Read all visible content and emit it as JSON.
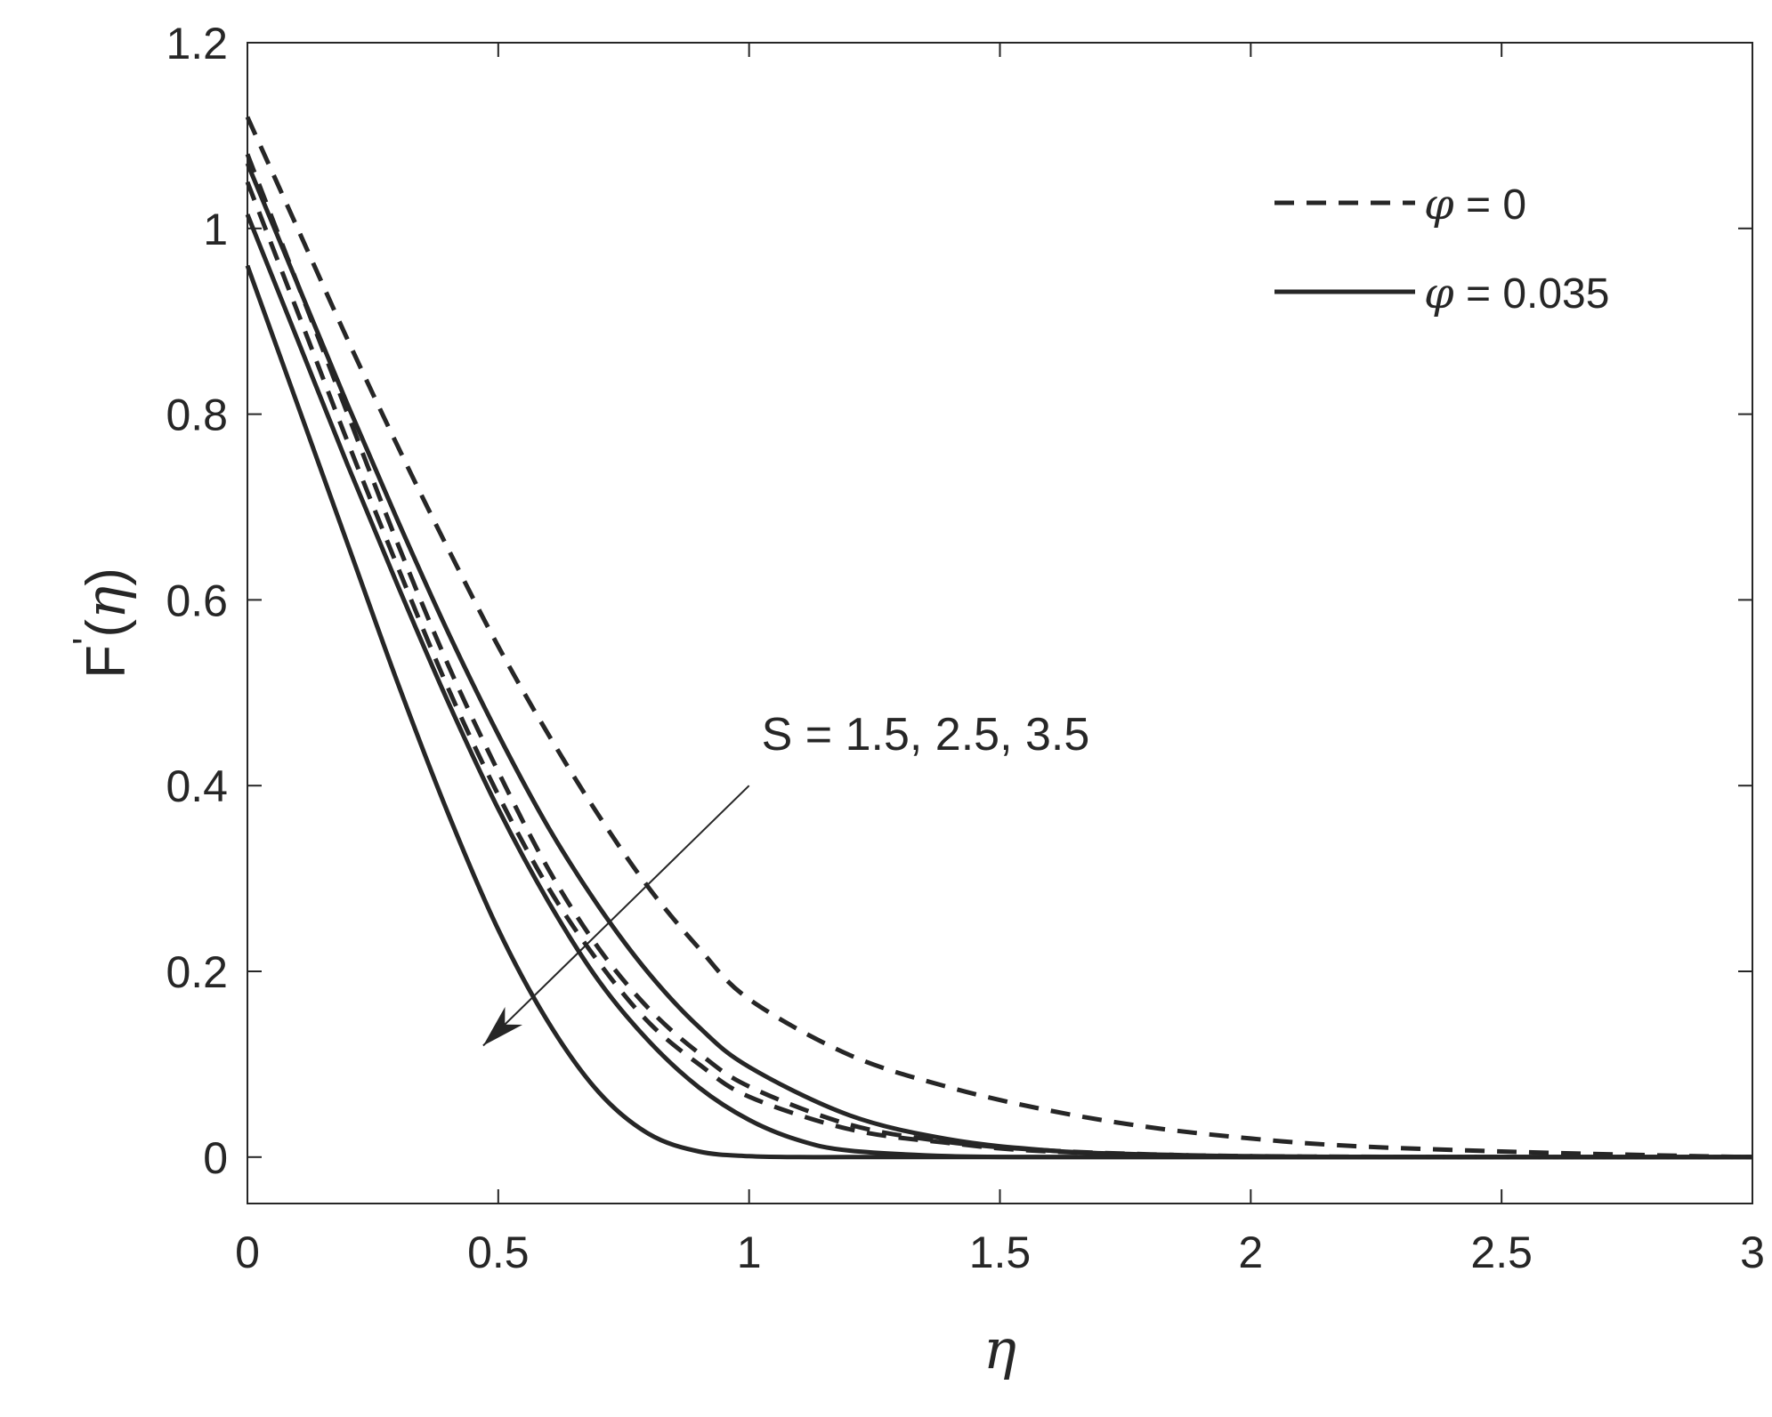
{
  "chart_data": {
    "type": "line",
    "xlabel": "η",
    "ylabel": {
      "main": "F",
      "prime": "'",
      "open": "(",
      "var": "η",
      "close": ")"
    },
    "xlim": [
      0,
      3
    ],
    "ylim": [
      -0.05,
      1.2
    ],
    "xticks": [
      0,
      0.5,
      1,
      1.5,
      2,
      2.5,
      3
    ],
    "xtick_labels": [
      "0",
      "0.5",
      "1",
      "1.5",
      "2",
      "2.5",
      "3"
    ],
    "yticks": [
      0,
      0.2,
      0.4,
      0.6,
      0.8,
      1,
      1.2
    ],
    "ytick_labels": [
      "0",
      "0.2",
      "0.4",
      "0.6",
      "0.8",
      "1",
      "1.2"
    ],
    "grid": false,
    "legend_position": "top-right",
    "legend": [
      {
        "symbol": "φ",
        "text": " = 0",
        "style": "dashed"
      },
      {
        "symbol": "φ",
        "text": " = 0.035",
        "style": "solid"
      }
    ],
    "annotation": {
      "text": "S = 1.5, 2.5, 3.5",
      "arrow_from": [
        1.0,
        0.4
      ],
      "arrow_to": [
        0.47,
        0.12
      ]
    },
    "series": [
      {
        "style": "dashed",
        "x": [
          0,
          0.1,
          0.2,
          0.3,
          0.4,
          0.5,
          0.6,
          0.7,
          0.8,
          0.9,
          1.0,
          1.2,
          1.4,
          1.6,
          1.8,
          2.0,
          2.2,
          2.5,
          2.8,
          3.0
        ],
        "y": [
          1.12,
          1.0,
          0.88,
          0.765,
          0.655,
          0.55,
          0.455,
          0.368,
          0.29,
          0.225,
          0.17,
          0.11,
          0.075,
          0.05,
          0.032,
          0.02,
          0.012,
          0.006,
          0.002,
          0.0
        ]
      },
      {
        "style": "dashed",
        "x": [
          0,
          0.1,
          0.2,
          0.3,
          0.4,
          0.5,
          0.6,
          0.7,
          0.8,
          0.9,
          1.0,
          1.2,
          1.4,
          1.6,
          1.8,
          2.0,
          2.5,
          3.0
        ],
        "y": [
          1.08,
          0.94,
          0.8,
          0.66,
          0.53,
          0.415,
          0.31,
          0.225,
          0.16,
          0.112,
          0.076,
          0.035,
          0.016,
          0.007,
          0.003,
          0.001,
          0.0,
          0.0
        ]
      },
      {
        "style": "dashed",
        "x": [
          0,
          0.1,
          0.2,
          0.3,
          0.4,
          0.5,
          0.6,
          0.7,
          0.8,
          0.9,
          1.0,
          1.2,
          1.4,
          1.6,
          2.0,
          2.5,
          3.0
        ],
        "y": [
          1.05,
          0.91,
          0.77,
          0.635,
          0.505,
          0.39,
          0.29,
          0.21,
          0.145,
          0.1,
          0.065,
          0.03,
          0.015,
          0.006,
          0.001,
          0.0,
          0.0
        ]
      },
      {
        "style": "solid",
        "x": [
          0,
          0.1,
          0.2,
          0.3,
          0.4,
          0.5,
          0.6,
          0.7,
          0.8,
          0.9,
          1.0,
          1.2,
          1.4,
          1.6,
          1.8,
          2.0,
          2.5,
          3.0
        ],
        "y": [
          1.07,
          0.94,
          0.81,
          0.685,
          0.565,
          0.455,
          0.355,
          0.27,
          0.198,
          0.14,
          0.097,
          0.045,
          0.019,
          0.007,
          0.002,
          0.0,
          0.0,
          0.0
        ]
      },
      {
        "style": "solid",
        "x": [
          0,
          0.1,
          0.2,
          0.3,
          0.4,
          0.5,
          0.6,
          0.7,
          0.8,
          0.9,
          1.0,
          1.1,
          1.2,
          1.4,
          1.6,
          2.0,
          2.5,
          3.0
        ],
        "y": [
          1.015,
          0.88,
          0.745,
          0.615,
          0.49,
          0.375,
          0.275,
          0.19,
          0.125,
          0.075,
          0.04,
          0.018,
          0.007,
          0.001,
          0.0,
          0.0,
          0.0,
          0.0
        ]
      },
      {
        "style": "solid",
        "x": [
          0,
          0.1,
          0.2,
          0.3,
          0.4,
          0.5,
          0.6,
          0.7,
          0.8,
          0.9,
          1.0,
          1.1,
          1.2,
          1.5,
          2.0,
          2.5,
          3.0
        ],
        "y": [
          0.96,
          0.81,
          0.66,
          0.51,
          0.37,
          0.245,
          0.145,
          0.07,
          0.025,
          0.006,
          0.001,
          0.0,
          0.0,
          0.0,
          0.0,
          0.0,
          0.0
        ]
      }
    ]
  }
}
